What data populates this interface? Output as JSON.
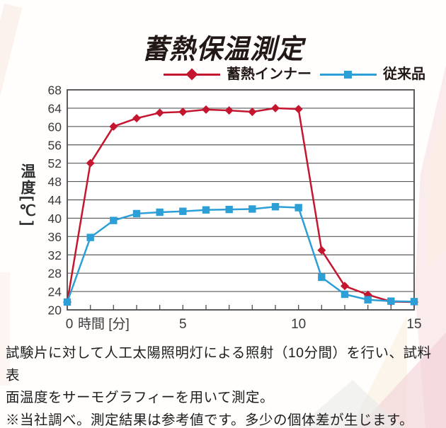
{
  "title": "蓄熱保温測定",
  "legend": {
    "items": [
      {
        "label": "蓄熱インナー",
        "marker": "diamond",
        "color": "#c5162f"
      },
      {
        "label": "従来品",
        "marker": "square",
        "color": "#2b9fd6"
      }
    ]
  },
  "chart_data": {
    "type": "line",
    "title": "蓄熱保温測定",
    "x": [
      0,
      1,
      2,
      3,
      4,
      5,
      6,
      7,
      8,
      9,
      10,
      11,
      12,
      13,
      14,
      15
    ],
    "series": [
      {
        "name": "蓄熱インナー",
        "color": "#c5162f",
        "marker": "diamond",
        "values": [
          21.7,
          52,
          60,
          61.8,
          63,
          63.2,
          63.7,
          63.5,
          63.2,
          64,
          63.8,
          33,
          25.2,
          23.3,
          21.8,
          21.7
        ]
      },
      {
        "name": "従来品",
        "color": "#2b9fd6",
        "marker": "square",
        "values": [
          21.7,
          35.8,
          39.5,
          41,
          41.3,
          41.5,
          41.8,
          41.9,
          42,
          42.5,
          42.3,
          27.1,
          23.4,
          22.2,
          21.9,
          21.8
        ]
      }
    ],
    "xlabel": "時間 [分]",
    "ylabel": "温度[℃]",
    "xlim": [
      0,
      15
    ],
    "ylim": [
      20,
      68
    ],
    "ytick_step": 4,
    "xtick_step": 1,
    "xticks_labeled": [
      0,
      5,
      10,
      15
    ],
    "grid": "horizontal",
    "legend_position": "top"
  },
  "axis": {
    "y_title": "温度[℃]"
  },
  "footnote": {
    "lines": [
      "試験片に対して人工太陽照明灯による照射（10分間）を行い、試料表",
      "面温度をサーモグラフィーを用いて測定。",
      "※当社調べ。測定結果は参考値です。多少の個体差が生じます。"
    ]
  },
  "colors": {
    "series_red": "#c5162f",
    "series_blue": "#2b9fd6",
    "grid": "#57585a",
    "axis_border": "#4a4b4d",
    "text": "#221815"
  }
}
